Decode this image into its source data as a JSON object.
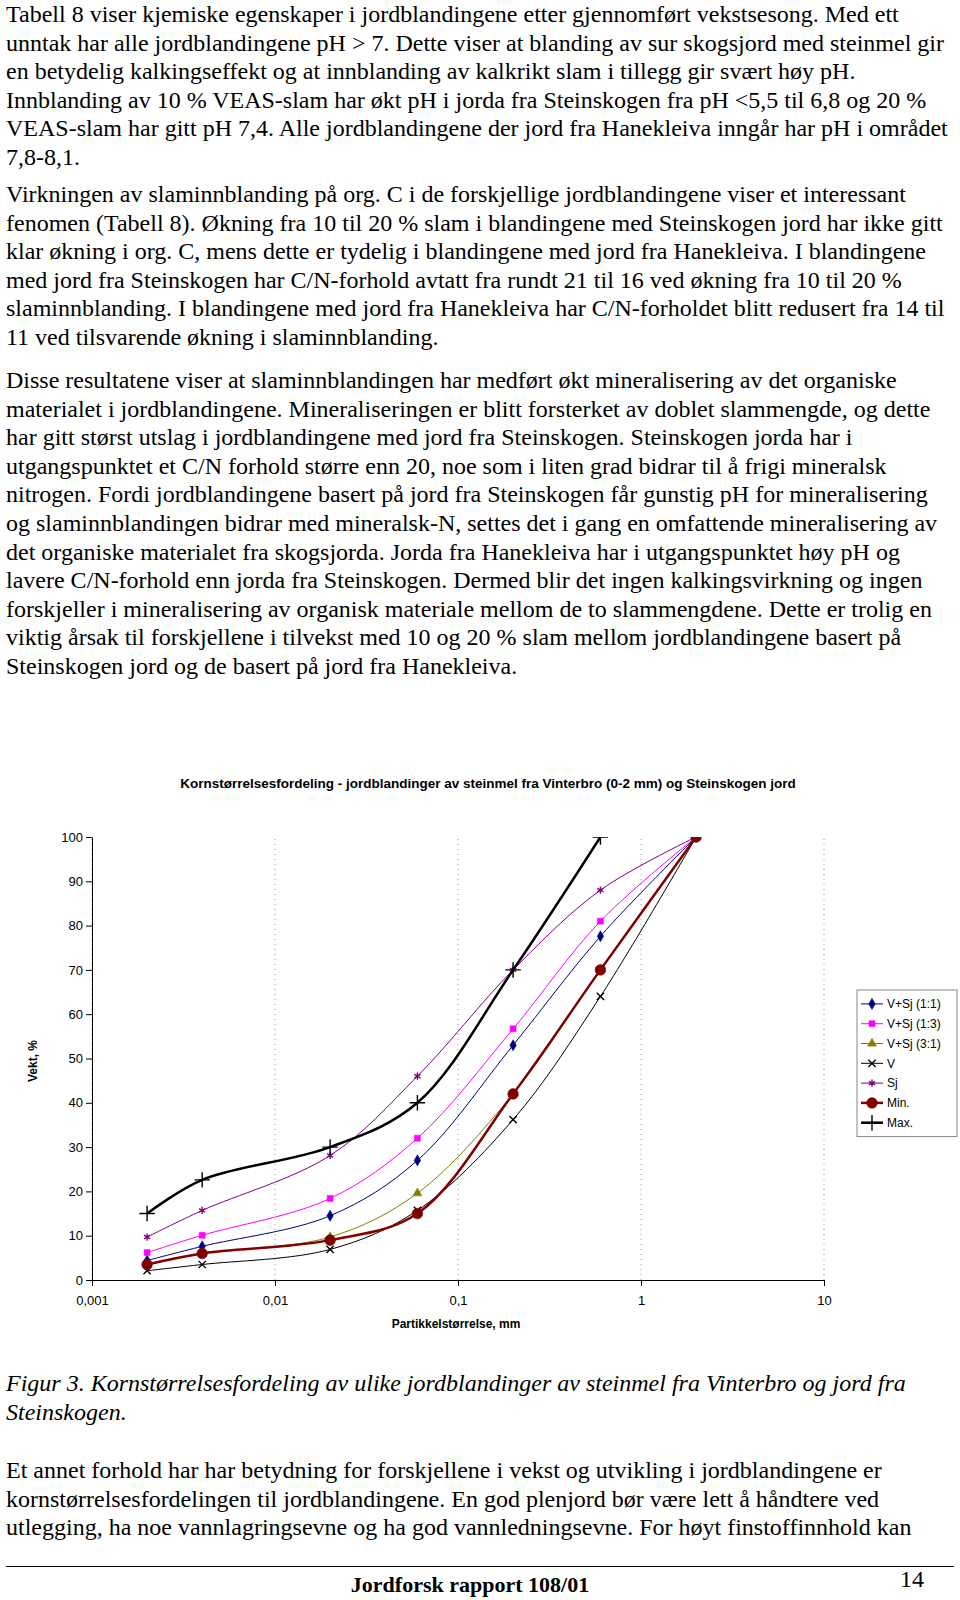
{
  "paragraphs": [
    "Tabell 8 viser kjemiske egenskaper i jordblandingene etter gjennomført vekstsesong. Med ett unntak har alle jordblandingene pH > 7. Dette viser at blanding av sur skogsjord med steinmel gir en betydelig kalkingseffekt og at innblanding av kalkrikt slam i tillegg gir svært høy pH. Innblanding av 10 % VEAS-slam har økt pH i jorda fra Steinskogen fra pH <5,5 til 6,8 og 20 % VEAS-slam har gitt pH 7,4. Alle jordblandingene der jord fra Hanekleiva inngår har pH i området 7,8-8,1.",
    "Virkningen av slaminnblanding på org. C i de forskjellige jordblandingene viser et interessant fenomen (Tabell 8). Økning fra 10 til 20 % slam i blandingene med Steinskogen jord har ikke gitt klar økning i org. C, mens dette er tydelig i blandingene med jord fra Hanekleiva. I blandingene med jord fra Steinskogen har C/N-forhold avtatt fra rundt 21 til 16 ved økning fra 10 til 20 % slaminnblanding. I blandingene med jord fra Hanekleiva har C/N-forholdet blitt redusert fra 14 til 11 ved tilsvarende økning i slaminnblanding.",
    "Disse resultatene viser at slaminnblandingen har medført økt mineralisering av det organiske materialet i jordblandingene. Mineraliseringen er blitt forsterket av doblet slammengde, og dette har gitt størst utslag i jordblandingene med jord fra Steinskogen. Steinskogen jorda har i utgangspunktet et C/N forhold større enn 20, noe som i liten grad bidrar til å frigi mineralsk nitrogen. Fordi jordblandingene basert på jord fra Steinskogen får gunstig pH for mineralisering og slaminnblandingen bidrar med mineralsk-N, settes det i gang en omfattende mineralisering av det organiske materialet fra skogsjorda. Jorda fra Hanekleiva har i utgangspunktet høy pH og lavere C/N-forhold enn jorda fra Steinskogen. Dermed blir det ingen kalkingsvirkning og ingen forskjeller i mineralisering av organisk materiale mellom de to slammengdene. Dette er trolig en viktig årsak til forskjellene i tilvekst med 10 og 20 % slam mellom jordblandingene basert på Steinskogen jord og de basert på jord fra Hanekleiva."
  ],
  "chart_data": {
    "type": "line",
    "title": "Kornstørrelsesfordeling - jordblandinger av steinmel fra Vinterbro (0-2 mm) og Steinskogen jord",
    "x_label": "Partikkelstørrelse, mm",
    "y_label": "Vekt, %",
    "log": "x",
    "grid": true,
    "legend": "right",
    "x": [
      0.002,
      0.004,
      0.02,
      0.06,
      0.2,
      0.6,
      2
    ],
    "xlim": [
      0.001,
      10
    ],
    "ylim": [
      0,
      100
    ],
    "xticks": [
      {
        "value": 0.001,
        "label": "0,001"
      },
      {
        "value": 0.01,
        "label": "0,01"
      },
      {
        "value": 0.1,
        "label": "0,1"
      },
      1,
      10
    ],
    "yticks": [
      0,
      10,
      20,
      30,
      40,
      50,
      60,
      70,
      80,
      90,
      100
    ],
    "series": [
      {
        "name": "V+Sj (1:1)",
        "color": "#000080",
        "marker": "diamond",
        "line_style": "solid",
        "values": [
          4.4,
          7.6,
          14.5,
          27,
          53,
          77.6,
          100
        ]
      },
      {
        "name": "V+Sj (1:3)",
        "color": "#ff00ff",
        "marker": "square",
        "line_style": "solid",
        "values": [
          6.2,
          10.1,
          18.4,
          32,
          56.7,
          81,
          100
        ]
      },
      {
        "name": "V+Sj (3:1)",
        "color": "#808000",
        "marker": "triangle",
        "line_style": "solid",
        "values": [
          3.5,
          6,
          9.7,
          19.6,
          42,
          70,
          100
        ]
      },
      {
        "name": "V",
        "color": "#000000",
        "marker": "x",
        "line_style": "solid",
        "values": [
          2.1,
          3.5,
          6.9,
          15.7,
          36.2,
          64,
          100
        ]
      },
      {
        "name": "Sj",
        "color": "#800080",
        "marker": "asterisk",
        "line_style": "solid",
        "values": [
          9.7,
          15.7,
          28.1,
          46,
          70,
          88,
          100
        ]
      },
      {
        "name": "Min.",
        "color": "#800000",
        "marker": "circle",
        "line_style": "bold",
        "values": [
          3.5,
          6,
          9,
          15,
          42,
          70,
          100
        ]
      },
      {
        "name": "Max.",
        "color": "#000000",
        "marker": "plus",
        "line_style": "bold",
        "values": [
          15,
          22.6,
          30,
          40,
          70,
          100,
          null
        ]
      }
    ]
  },
  "caption": "Figur 3. Kornstørrelsesfordeling av ulike jordblandinger av steinmel fra Vinterbro og jord fra Steinskogen.",
  "closing_paragraph": "Et annet forhold har har betydning for forskjellene i vekst og utvikling i jordblandingene er kornstørrelsesfordelingen til jordblandingene. En god plenjord bør være lett å håndtere ved utlegging, ha noe vannlagringsevne og ha god vannledningsevne. For høyt finstoffinnhold kan",
  "footer": {
    "title": "Jordforsk rapport 108/01",
    "page": 14
  }
}
